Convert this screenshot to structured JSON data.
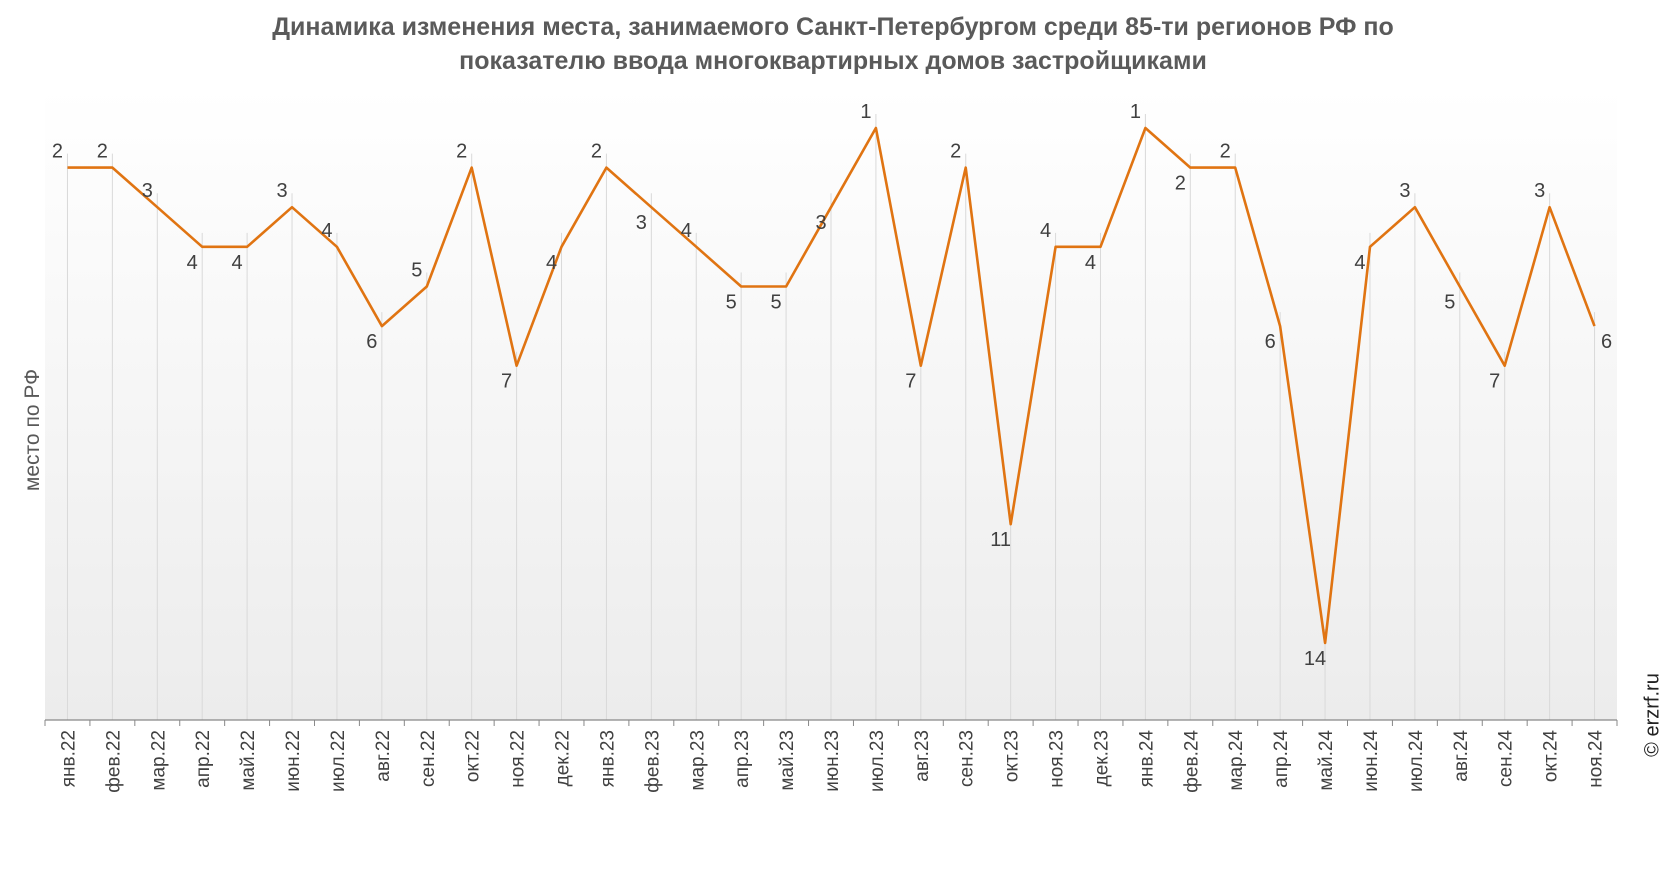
{
  "chart_data": {
    "type": "line",
    "title": "Динамика изменения места, занимаемого Санкт-Петербургом среди 85-ти регионов РФ по показателю ввода многоквартирных домов застройщиками",
    "title_lines": [
      "Динамика изменения места, занимаемого Санкт-Петербургом среди 85-ти регионов РФ по",
      "показателю ввода многоквартирных домов застройщиками"
    ],
    "xlabel": "",
    "ylabel": "место по РФ",
    "y_inverted": true,
    "ylim": [
      1,
      14
    ],
    "grid": "vertical",
    "categories": [
      "янв.22",
      "фев.22",
      "мар.22",
      "апр.22",
      "май.22",
      "июн.22",
      "июл.22",
      "авг.22",
      "сен.22",
      "окт.22",
      "ноя.22",
      "дек.22",
      "янв.23",
      "фев.23",
      "мар.23",
      "апр.23",
      "май.23",
      "июн.23",
      "июл.23",
      "авг.23",
      "сен.23",
      "окт.23",
      "ноя.23",
      "дек.23",
      "янв.24",
      "фев.24",
      "мар.24",
      "апр.24",
      "май.24",
      "июн.24",
      "июл.24",
      "авг.24",
      "сен.24",
      "окт.24",
      "ноя.24"
    ],
    "series": [
      {
        "values": [
          2,
          2,
          3,
          4,
          4,
          3,
          4,
          6,
          5,
          2,
          7,
          4,
          2,
          3,
          4,
          5,
          5,
          3,
          1,
          7,
          2,
          11,
          4,
          4,
          1,
          2,
          2,
          6,
          14,
          4,
          3,
          5,
          7,
          3,
          6
        ]
      }
    ],
    "line_color": "#e07412"
  },
  "copyright": "© erzrf.ru"
}
